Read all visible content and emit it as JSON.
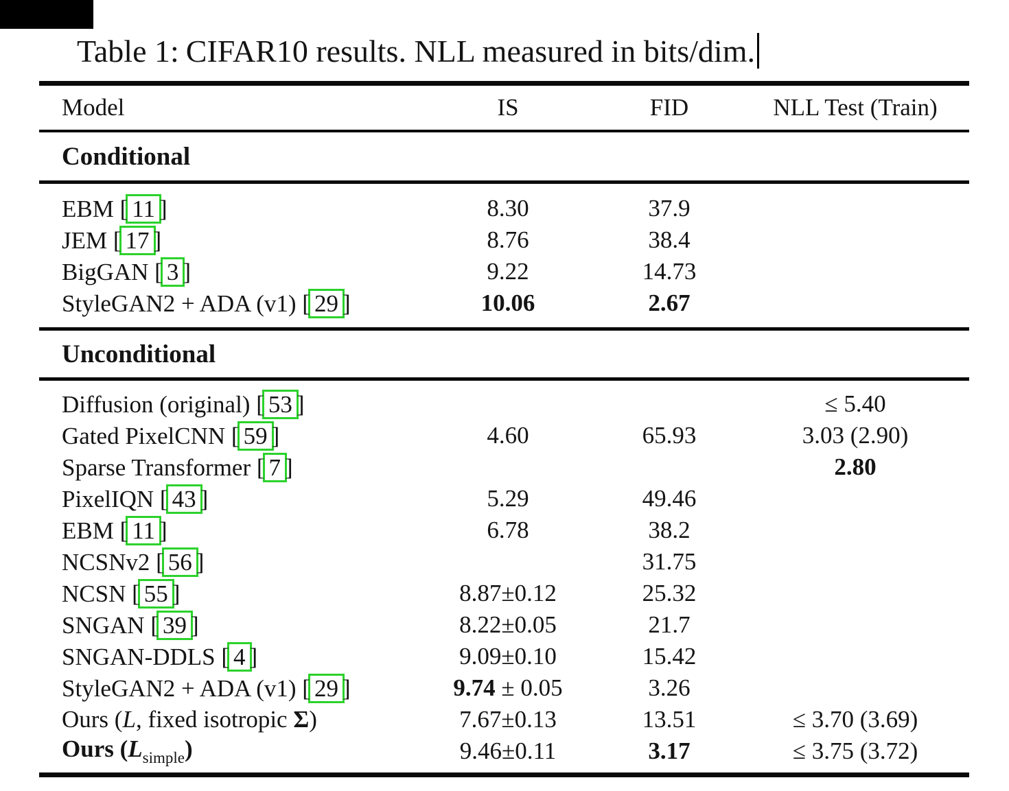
{
  "page": {
    "background": "#ffffff"
  },
  "title": {
    "prefix": "Table 1:",
    "caption": "CIFAR10 results. NLL measured in bits/dim."
  },
  "header": {
    "columns": [
      "Model",
      "IS",
      "FID",
      "NLL Test (Train)"
    ]
  },
  "accent": {
    "citation_box_color": "#2bd22b",
    "rule_color": "#0a0a0a",
    "text_color": "#141414"
  },
  "sections": [
    {
      "label": "Conditional",
      "rows": [
        {
          "model": [
            {
              "t": "EBM"
            }
          ],
          "cite": "11",
          "is": [
            {
              "t": "8.30"
            }
          ],
          "fid": [
            {
              "t": "37.9"
            }
          ],
          "nll": []
        },
        {
          "model": [
            {
              "t": "JEM"
            }
          ],
          "cite": "17",
          "is": [
            {
              "t": "8.76"
            }
          ],
          "fid": [
            {
              "t": "38.4"
            }
          ],
          "nll": []
        },
        {
          "model": [
            {
              "t": "BigGAN"
            }
          ],
          "cite": "3",
          "is": [
            {
              "t": "9.22"
            }
          ],
          "fid": [
            {
              "t": "14.73"
            }
          ],
          "nll": []
        },
        {
          "model": [
            {
              "t": "StyleGAN2 + ADA (v1)"
            }
          ],
          "cite": "29",
          "is": [
            {
              "t": "10.06",
              "b": true
            }
          ],
          "fid": [
            {
              "t": "2.67",
              "b": true
            }
          ],
          "nll": []
        }
      ]
    },
    {
      "label": "Unconditional",
      "rows": [
        {
          "model": [
            {
              "t": "Diffusion (original)"
            }
          ],
          "cite": "53",
          "is": [],
          "fid": [],
          "nll": [
            {
              "t": "≤ 5.40"
            }
          ]
        },
        {
          "model": [
            {
              "t": "Gated PixelCNN"
            }
          ],
          "cite": "59",
          "is": [
            {
              "t": "4.60"
            }
          ],
          "fid": [
            {
              "t": "65.93"
            }
          ],
          "nll": [
            {
              "t": "3.03 (2.90)"
            }
          ]
        },
        {
          "model": [
            {
              "t": "Sparse Transformer"
            }
          ],
          "cite": "7",
          "is": [],
          "fid": [],
          "nll": [
            {
              "t": "2.80",
              "b": true
            }
          ]
        },
        {
          "model": [
            {
              "t": "PixelIQN"
            }
          ],
          "cite": "43",
          "is": [
            {
              "t": "5.29"
            }
          ],
          "fid": [
            {
              "t": "49.46"
            }
          ],
          "nll": []
        },
        {
          "model": [
            {
              "t": "EBM"
            }
          ],
          "cite": "11",
          "is": [
            {
              "t": "6.78"
            }
          ],
          "fid": [
            {
              "t": "38.2"
            }
          ],
          "nll": []
        },
        {
          "model": [
            {
              "t": "NCSNv2"
            }
          ],
          "cite": "56",
          "is": [],
          "fid": [
            {
              "t": "31.75"
            }
          ],
          "nll": []
        },
        {
          "model": [
            {
              "t": "NCSN"
            }
          ],
          "cite": "55",
          "is": [
            {
              "t": "8.87±0.12"
            }
          ],
          "fid": [
            {
              "t": "25.32"
            }
          ],
          "nll": []
        },
        {
          "model": [
            {
              "t": "SNGAN"
            }
          ],
          "cite": "39",
          "is": [
            {
              "t": "8.22±0.05"
            }
          ],
          "fid": [
            {
              "t": "21.7"
            }
          ],
          "nll": []
        },
        {
          "model": [
            {
              "t": "SNGAN-DDLS"
            }
          ],
          "cite": "4",
          "is": [
            {
              "t": "9.09±0.10"
            }
          ],
          "fid": [
            {
              "t": "15.42"
            }
          ],
          "nll": []
        },
        {
          "model": [
            {
              "t": "StyleGAN2 + ADA (v1)"
            }
          ],
          "cite": "29",
          "is": [
            {
              "t": "9.74",
              "b": true
            },
            {
              "t": " ± 0.05"
            }
          ],
          "fid": [
            {
              "t": "3.26"
            }
          ],
          "nll": []
        },
        {
          "model": [
            {
              "t": "Ours ("
            },
            {
              "t": "L",
              "i": true
            },
            {
              "t": ", fixed isotropic "
            },
            {
              "t": "Σ",
              "b": true
            },
            {
              "t": ")"
            }
          ],
          "cite": null,
          "is": [
            {
              "t": "7.67±0.13"
            }
          ],
          "fid": [
            {
              "t": "13.51"
            }
          ],
          "nll": [
            {
              "t": "≤ 3.70 (3.69)"
            }
          ]
        },
        {
          "model": [
            {
              "t": "Ours (",
              "b": true
            },
            {
              "t": "L",
              "b": true,
              "i": true
            },
            {
              "t": "simple",
              "sub": true
            },
            {
              "t": ")",
              "b": true
            }
          ],
          "cite": null,
          "is": [
            {
              "t": "9.46±0.11"
            }
          ],
          "fid": [
            {
              "t": "3.17",
              "b": true
            }
          ],
          "nll": [
            {
              "t": "≤ 3.75 (3.72)"
            }
          ]
        }
      ]
    }
  ]
}
